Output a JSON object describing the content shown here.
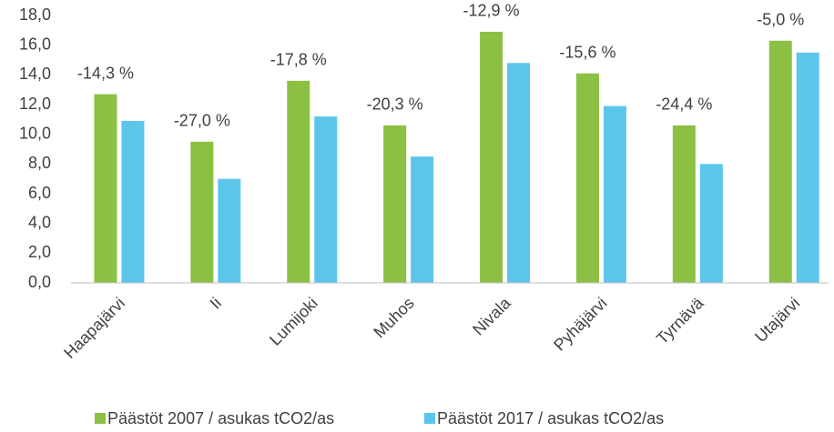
{
  "chart_data": {
    "type": "bar",
    "categories": [
      "Haapajärvi",
      "Ii",
      "Lumijoki",
      "Muhos",
      "Nivala",
      "Pyhäjärvi",
      "Tyrnävä",
      "Utajärvi"
    ],
    "series": [
      {
        "name": "Päästöt 2007 / asukas tCO2/as",
        "color": "#8cc043",
        "values": [
          12.7,
          9.5,
          13.6,
          10.6,
          16.9,
          14.1,
          10.6,
          16.3
        ]
      },
      {
        "name": "Päästöt 2017 / asukas tCO2/as",
        "color": "#5bc6ea",
        "values": [
          10.9,
          7.0,
          11.2,
          8.5,
          14.8,
          11.9,
          8.0,
          15.5
        ]
      }
    ],
    "annotations": [
      "-14,3 %",
      "-27,0 %",
      "-17,8 %",
      "-20,3 %",
      "-12,9 %",
      "-15,6 %",
      "-24,4 %",
      "-5,0 %"
    ],
    "ylim": [
      0,
      18
    ],
    "yticks": [
      {
        "value": 0,
        "label": "0,0"
      },
      {
        "value": 2,
        "label": "2,0"
      },
      {
        "value": 4,
        "label": "4,0"
      },
      {
        "value": 6,
        "label": "6,0"
      },
      {
        "value": 8,
        "label": "8,0"
      },
      {
        "value": 10,
        "label": "10,0"
      },
      {
        "value": 12,
        "label": "12,0"
      },
      {
        "value": 14,
        "label": "14,0"
      },
      {
        "value": 16,
        "label": "16,0"
      },
      {
        "value": 18,
        "label": "18,0"
      }
    ],
    "grid": false,
    "legend": "bottom"
  }
}
